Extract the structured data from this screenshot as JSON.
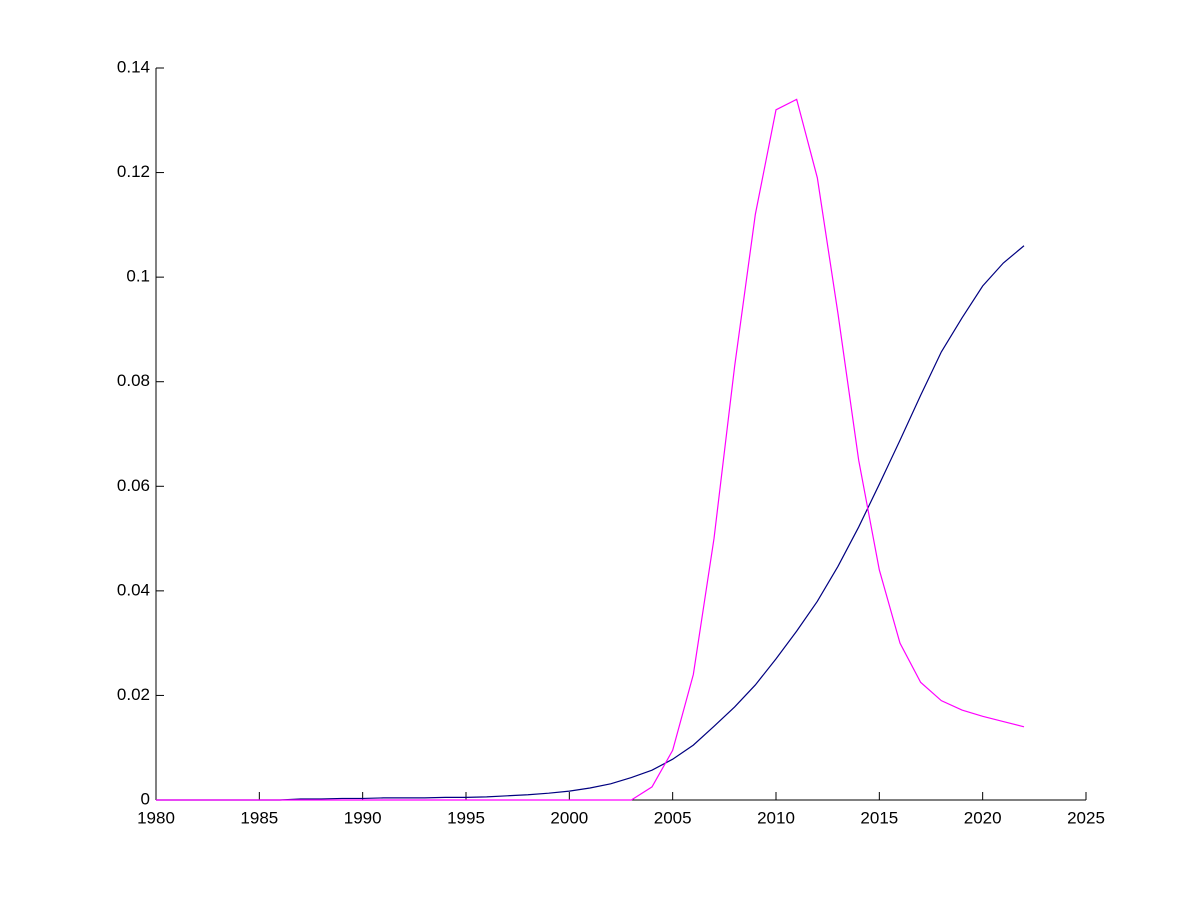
{
  "chart_data": {
    "type": "line",
    "x": [
      1980,
      1981,
      1982,
      1983,
      1984,
      1985,
      1986,
      1987,
      1988,
      1989,
      1990,
      1991,
      1992,
      1993,
      1994,
      1995,
      1996,
      1997,
      1998,
      1999,
      2000,
      2001,
      2002,
      2003,
      2004,
      2005,
      2006,
      2007,
      2008,
      2009,
      2010,
      2011,
      2012,
      2013,
      2014,
      2015,
      2016,
      2017,
      2018,
      2019,
      2020,
      2021,
      2022
    ],
    "series": [
      {
        "color": "#000080",
        "values": [
          0,
          0,
          0,
          0,
          0,
          0,
          0,
          0.0002,
          0.0002,
          0.0003,
          0.0003,
          0.0004,
          0.0004,
          0.0004,
          0.0005,
          0.0005,
          0.0006,
          0.0008,
          0.001,
          0.0013,
          0.0017,
          0.0023,
          0.0031,
          0.0043,
          0.0057,
          0.0078,
          0.0105,
          0.0141,
          0.0178,
          0.022,
          0.027,
          0.0323,
          0.038,
          0.0447,
          0.0522,
          0.0604,
          0.0688,
          0.0774,
          0.0857,
          0.0922,
          0.0983,
          0.1027,
          0.106
        ]
      },
      {
        "color": "#ff00ff",
        "values": [
          0,
          0,
          0,
          0,
          0,
          0,
          0,
          0,
          0,
          0,
          0,
          0,
          0,
          0,
          0,
          0,
          0,
          0,
          0,
          0,
          0,
          0,
          0,
          0,
          0.0025,
          0.0095,
          0.024,
          0.05,
          0.083,
          0.112,
          0.132,
          0.134,
          0.119,
          0.093,
          0.065,
          0.044,
          0.03,
          0.0225,
          0.019,
          0.0172,
          0.016,
          0.015,
          0.014
        ]
      }
    ],
    "xlim": [
      1980,
      2025
    ],
    "xticks": [
      1980,
      1985,
      1990,
      1995,
      2000,
      2005,
      2010,
      2015,
      2020,
      2025
    ],
    "ylim": [
      0,
      0.14
    ],
    "yticks": [
      0,
      0.02,
      0.04,
      0.06,
      0.08,
      0.1,
      0.12,
      0.14
    ],
    "grid": false
  }
}
